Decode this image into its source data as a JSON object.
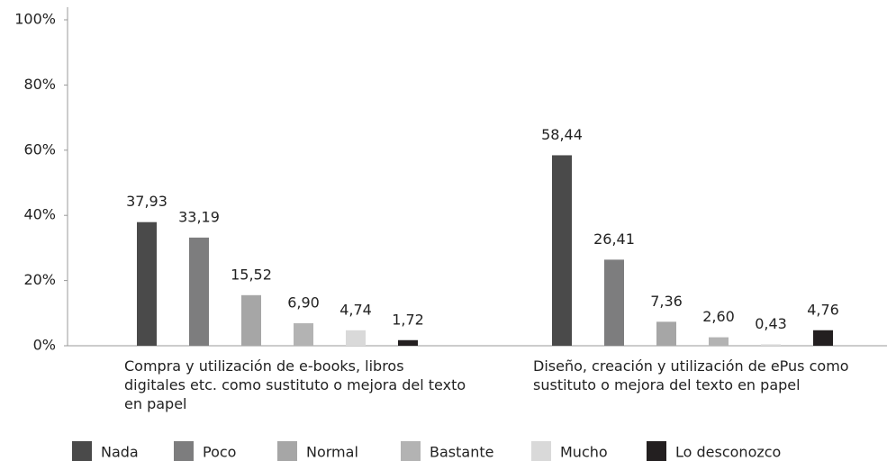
{
  "chart_data": {
    "type": "bar",
    "categories": [
      "Compra y utilización de e-books, libros digitales etc. como sustituto o mejora del texto en papel",
      "Diseño, creación y utilización de ePus como sustituto o mejora del texto en papel"
    ],
    "series": [
      {
        "name": "Nada",
        "color": "#4a4a4a",
        "values": [
          37.93,
          58.44
        ],
        "value_labels": [
          "37,93",
          "58,44"
        ]
      },
      {
        "name": "Poco",
        "color": "#7d7d7e",
        "values": [
          33.19,
          26.41
        ],
        "value_labels": [
          "33,19",
          "26,41"
        ]
      },
      {
        "name": "Normal",
        "color": "#a6a6a6",
        "values": [
          15.52,
          7.36
        ],
        "value_labels": [
          "15,52",
          "7,36"
        ]
      },
      {
        "name": "Bastante",
        "color": "#b3b3b3",
        "values": [
          6.9,
          2.6
        ],
        "value_labels": [
          "6,90",
          "2,60"
        ]
      },
      {
        "name": "Mucho",
        "color": "#d9d9d9",
        "values": [
          4.74,
          0.43
        ],
        "value_labels": [
          "4,74",
          "0,43"
        ]
      },
      {
        "name": "Lo desconozco",
        "color": "#231f20",
        "values": [
          1.72,
          4.76
        ],
        "value_labels": [
          "1,72",
          "4,76"
        ]
      }
    ],
    "ylim": [
      0,
      100
    ],
    "yticks": [
      {
        "value": 0,
        "label": "0%"
      },
      {
        "value": 20,
        "label": "20%"
      },
      {
        "value": 40,
        "label": "40%"
      },
      {
        "value": 60,
        "label": "60%"
      },
      {
        "value": 80,
        "label": "80%"
      },
      {
        "value": 100,
        "label": "100%"
      }
    ],
    "legend": "bottom"
  }
}
